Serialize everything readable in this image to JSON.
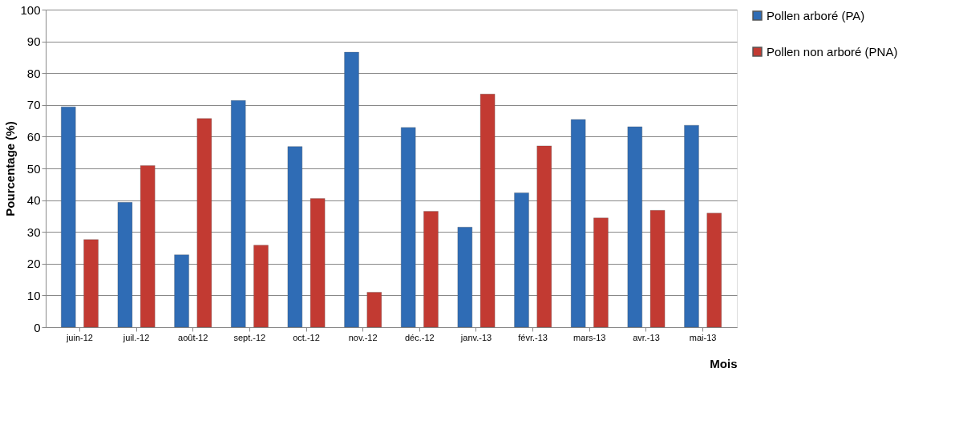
{
  "chart_data": {
    "type": "bar",
    "xlabel": "Mois",
    "ylabel": "Pourcentage (%)",
    "categories": [
      "juin-12",
      "juil.-12",
      "août-12",
      "sept.-12",
      "oct.-12",
      "nov.-12",
      "déc.-12",
      "janv.-13",
      "févr.-13",
      "mars-13",
      "avr.-13",
      "mai-13"
    ],
    "series": [
      {
        "name": "Pollen arboré (PA)",
        "color": "#2f6cb5",
        "values": [
          69.4,
          39.3,
          22.8,
          71.4,
          56.9,
          86.6,
          62.9,
          31.5,
          42.3,
          65.4,
          63.1,
          63.6
        ]
      },
      {
        "name": "Pollen non arboré (PNA)",
        "color": "#c23a32",
        "values": [
          27.6,
          50.9,
          65.7,
          25.8,
          40.5,
          11.0,
          36.5,
          73.4,
          57.1,
          34.4,
          36.8,
          35.9
        ]
      }
    ],
    "ylim": [
      0,
      100
    ],
    "yticks": [
      0,
      10,
      20,
      30,
      40,
      50,
      60,
      70,
      80,
      90,
      100
    ],
    "grid": "y",
    "legend": "top right"
  }
}
